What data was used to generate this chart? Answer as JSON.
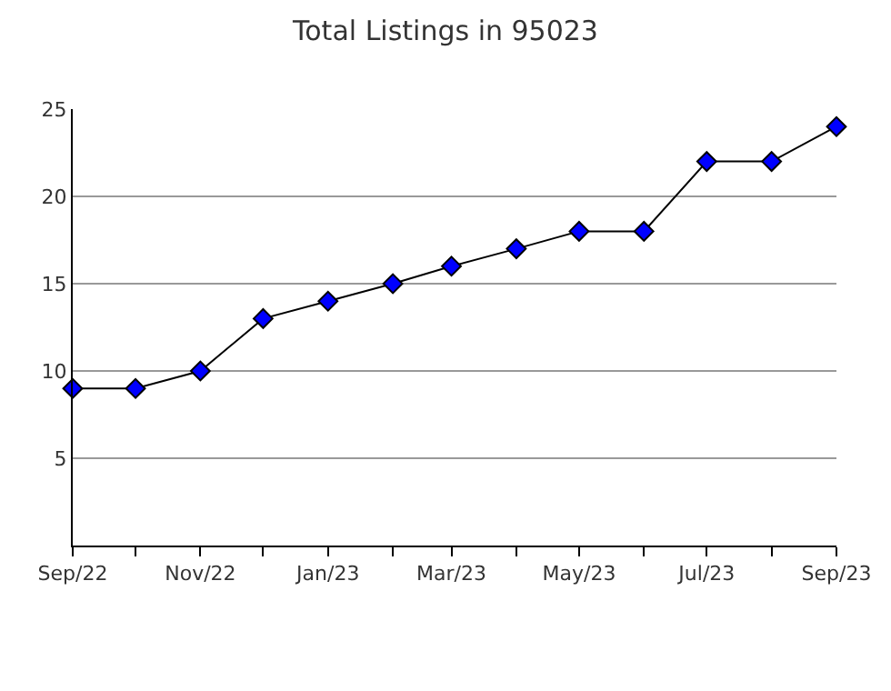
{
  "chart_data": {
    "type": "line",
    "title": "Total Listings in 95023",
    "x": [
      "2022-09",
      "2022-10",
      "2022-11",
      "2022-12",
      "2023-01",
      "2023-02",
      "2023-03",
      "2023-04",
      "2023-05",
      "2023-06",
      "2023-07",
      "2023-08",
      "2023-09"
    ],
    "series": [
      {
        "color": "#0000ff",
        "values": [
          9,
          9,
          10,
          13,
          14,
          15,
          16,
          17,
          18,
          18,
          22,
          22,
          24
        ]
      }
    ],
    "xlim": [
      "2022-09",
      "2023-09"
    ],
    "xticks": [
      {
        "value": "2022-09",
        "label": "Sep/22"
      },
      {
        "value": "2022-10",
        "label": null
      },
      {
        "value": "2022-11",
        "label": "Nov/22"
      },
      {
        "value": "2022-12",
        "label": null
      },
      {
        "value": "2023-01",
        "label": "Jan/23"
      },
      {
        "value": "2023-02",
        "label": null
      },
      {
        "value": "2023-03",
        "label": "Mar/23"
      },
      {
        "value": "2023-04",
        "label": null
      },
      {
        "value": "2023-05",
        "label": "May/23"
      },
      {
        "value": "2023-06",
        "label": null
      },
      {
        "value": "2023-07",
        "label": "Jul/23"
      },
      {
        "value": "2023-08",
        "label": null
      },
      {
        "value": "2023-09",
        "label": "Sep/23"
      }
    ],
    "ylim": [
      0,
      25
    ],
    "yticks": [
      5,
      10,
      15,
      20,
      25
    ],
    "grid": "y",
    "marker": "diamond",
    "line_style": "solid"
  }
}
